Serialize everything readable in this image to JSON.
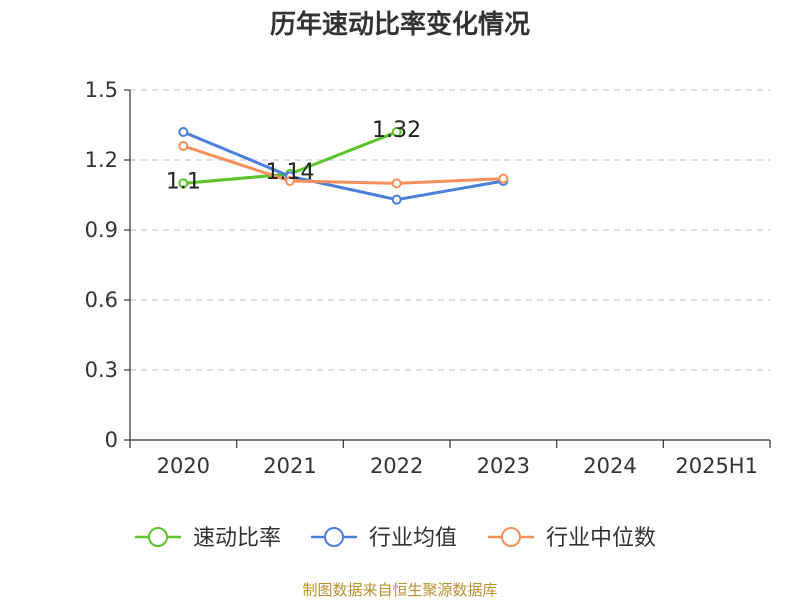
{
  "chart_data": {
    "type": "line",
    "title": "历年速动比率变化情况",
    "categories": [
      "2020",
      "2021",
      "2022",
      "2023",
      "2024",
      "2025H1"
    ],
    "y_ticks": [
      "0",
      "0.3",
      "0.6",
      "0.9",
      "1.2",
      "1.5"
    ],
    "ylim": [
      0,
      1.5
    ],
    "grid": true,
    "legend_position": "bottom",
    "series": [
      {
        "name": "速动比率",
        "color": "#5bc42a",
        "values": [
          1.1,
          1.14,
          1.32,
          null,
          null,
          null
        ],
        "labels": [
          "1.1",
          "1.14",
          "1.32",
          null,
          null,
          null
        ]
      },
      {
        "name": "行业均值",
        "color": "#4a7fdc",
        "values": [
          1.32,
          1.13,
          1.03,
          1.11,
          null,
          null
        ]
      },
      {
        "name": "行业中位数",
        "color": "#f5905a",
        "values": [
          1.26,
          1.11,
          1.1,
          1.12,
          null,
          null
        ]
      }
    ],
    "source": "制图数据来自恒生聚源数据库"
  }
}
